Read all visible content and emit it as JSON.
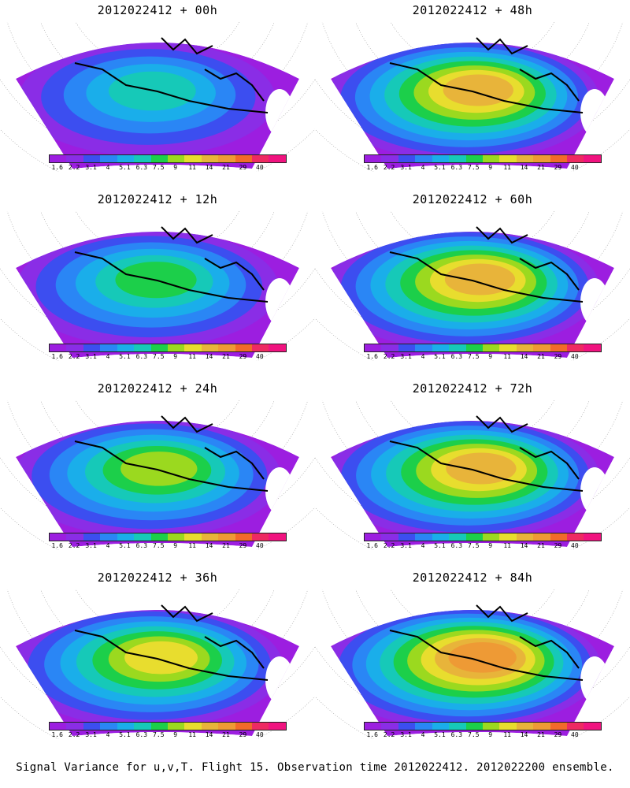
{
  "panels": [
    {
      "title": "2012022412 + 00h",
      "level": 0.25
    },
    {
      "title": "2012022412 + 48h",
      "level": 0.62
    },
    {
      "title": "2012022412 + 12h",
      "level": 0.38
    },
    {
      "title": "2012022412 + 60h",
      "level": 0.68
    },
    {
      "title": "2012022412 + 24h",
      "level": 0.48
    },
    {
      "title": "2012022412 + 72h",
      "level": 0.72
    },
    {
      "title": "2012022412 + 36h",
      "level": 0.55
    },
    {
      "title": "2012022412 + 84h",
      "level": 0.76
    }
  ],
  "colorbar": {
    "labels": [
      "1.6",
      "2.2",
      "3.1",
      "4",
      "5.1",
      "6.3",
      "7.5",
      "9",
      "11",
      "14",
      "21",
      "29",
      "40"
    ],
    "colors": [
      "#9c1ee0",
      "#8a2de6",
      "#3c4ef0",
      "#2a86f5",
      "#1aaeea",
      "#16c9b8",
      "#1ccf4a",
      "#9bd91f",
      "#e8dd2e",
      "#e8b43a",
      "#ee9a35",
      "#f26a2a",
      "#ee2a62",
      "#f0137f"
    ]
  },
  "caption": "Signal Variance for u,v,T. Flight 15. Observation time 2012022412. 2012022200 ensemble."
}
